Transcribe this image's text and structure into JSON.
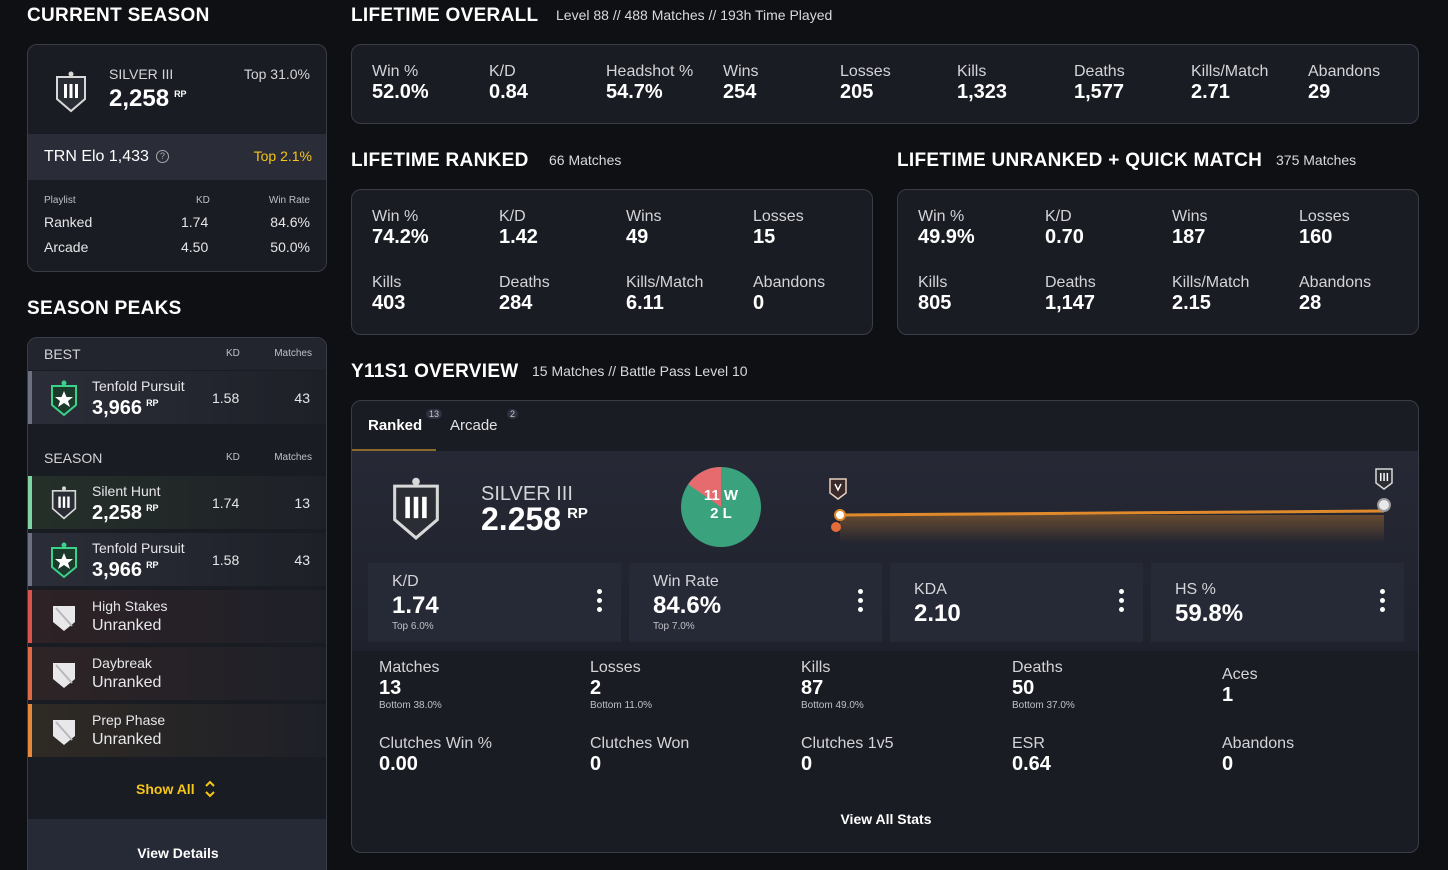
{
  "current_season": {
    "title": "CURRENT SEASON",
    "rank_name": "SILVER III",
    "rp": "2,258",
    "rp_unit": "RP",
    "rank_top": "Top 31.0%",
    "elo_label": "TRN Elo",
    "elo_value": "1,433",
    "elo_top": "Top 2.1%",
    "table": {
      "headers": [
        "Playlist",
        "KD",
        "Win Rate"
      ],
      "rows": [
        {
          "playlist": "Ranked",
          "kd": "1.74",
          "win_rate": "84.6%"
        },
        {
          "playlist": "Arcade",
          "kd": "4.50",
          "win_rate": "50.0%"
        }
      ]
    }
  },
  "season_peaks": {
    "title": "SEASON PEAKS",
    "best_header": "BEST",
    "season_header": "SEASON",
    "kd_header": "KD",
    "matches_header": "Matches",
    "best": {
      "name": "Tenfold Pursuit",
      "rp": "3,966",
      "rp_unit": "RP",
      "kd": "1.58",
      "matches": "43"
    },
    "season_rows": [
      {
        "name": "Silent Hunt",
        "rp": "2,258",
        "rp_unit": "RP",
        "kd": "1.74",
        "matches": "13"
      },
      {
        "name": "Tenfold Pursuit",
        "rp": "3,966",
        "rp_unit": "RP",
        "kd": "1.58",
        "matches": "43"
      },
      {
        "name": "High Stakes",
        "status": "Unranked"
      },
      {
        "name": "Daybreak",
        "status": "Unranked"
      },
      {
        "name": "Prep Phase",
        "status": "Unranked"
      }
    ],
    "show_all": "Show All",
    "view_details": "View Details"
  },
  "lifetime_overall": {
    "title": "LIFETIME OVERALL",
    "meta": "Level 88 // 488 Matches // 193h Time Played",
    "stats": [
      {
        "label": "Win %",
        "value": "52.0%"
      },
      {
        "label": "K/D",
        "value": "0.84"
      },
      {
        "label": "Headshot %",
        "value": "54.7%"
      },
      {
        "label": "Wins",
        "value": "254"
      },
      {
        "label": "Losses",
        "value": "205"
      },
      {
        "label": "Kills",
        "value": "1,323"
      },
      {
        "label": "Deaths",
        "value": "1,577"
      },
      {
        "label": "Kills/Match",
        "value": "2.71"
      },
      {
        "label": "Abandons",
        "value": "29"
      }
    ]
  },
  "lifetime_ranked": {
    "title": "LIFETIME RANKED",
    "meta": "66 Matches",
    "stats": [
      {
        "label": "Win %",
        "value": "74.2%"
      },
      {
        "label": "K/D",
        "value": "1.42"
      },
      {
        "label": "Wins",
        "value": "49"
      },
      {
        "label": "Losses",
        "value": "15"
      },
      {
        "label": "Kills",
        "value": "403"
      },
      {
        "label": "Deaths",
        "value": "284"
      },
      {
        "label": "Kills/Match",
        "value": "6.11"
      },
      {
        "label": "Abandons",
        "value": "0"
      }
    ]
  },
  "lifetime_unranked": {
    "title": "LIFETIME UNRANKED + QUICK MATCH",
    "meta": "375 Matches",
    "stats": [
      {
        "label": "Win %",
        "value": "49.9%"
      },
      {
        "label": "K/D",
        "value": "0.70"
      },
      {
        "label": "Wins",
        "value": "187"
      },
      {
        "label": "Losses",
        "value": "160"
      },
      {
        "label": "Kills",
        "value": "805"
      },
      {
        "label": "Deaths",
        "value": "1,147"
      },
      {
        "label": "Kills/Match",
        "value": "2.15"
      },
      {
        "label": "Abandons",
        "value": "28"
      }
    ]
  },
  "overview": {
    "title": "Y11S1 OVERVIEW",
    "meta": "15 Matches //  Battle Pass Level 10",
    "tabs": [
      {
        "label": "Ranked",
        "count": "13"
      },
      {
        "label": "Arcade",
        "count": "2"
      }
    ],
    "rank_name": "SILVER III",
    "rp": "2.258",
    "rp_unit": "RP",
    "wins": 11,
    "losses": 2,
    "wins_text": "11",
    "losses_text": "2",
    "w_letter": "W",
    "l_letter": "L",
    "tiles": [
      {
        "label": "K/D",
        "value": "1.74",
        "sub": "Top 6.0%"
      },
      {
        "label": "Win Rate",
        "value": "84.6%",
        "sub": "Top 7.0%"
      },
      {
        "label": "KDA",
        "value": "2.10",
        "sub": ""
      },
      {
        "label": "HS %",
        "value": "59.8%",
        "sub": ""
      }
    ],
    "stats_row1": [
      {
        "label": "Matches",
        "value": "13",
        "sub": "Bottom 38.0%"
      },
      {
        "label": "Losses",
        "value": "2",
        "sub": "Bottom 11.0%"
      },
      {
        "label": "Kills",
        "value": "87",
        "sub": "Bottom 49.0%"
      },
      {
        "label": "Deaths",
        "value": "50",
        "sub": "Bottom 37.0%"
      },
      {
        "label": "Aces",
        "value": "1",
        "sub": ""
      }
    ],
    "stats_row2": [
      {
        "label": "Clutches Win %",
        "value": "0.00"
      },
      {
        "label": "Clutches Won",
        "value": "0"
      },
      {
        "label": "Clutches 1v5",
        "value": "0"
      },
      {
        "label": "ESR",
        "value": "0.64"
      },
      {
        "label": "Abandons",
        "value": "0"
      }
    ],
    "view_all": "View All Stats"
  },
  "colors": {
    "accent_gold": "#f5c518",
    "win_green": "#3aa37e",
    "loss_red": "#e56b6f",
    "progress_orange": "#e08a2c"
  }
}
